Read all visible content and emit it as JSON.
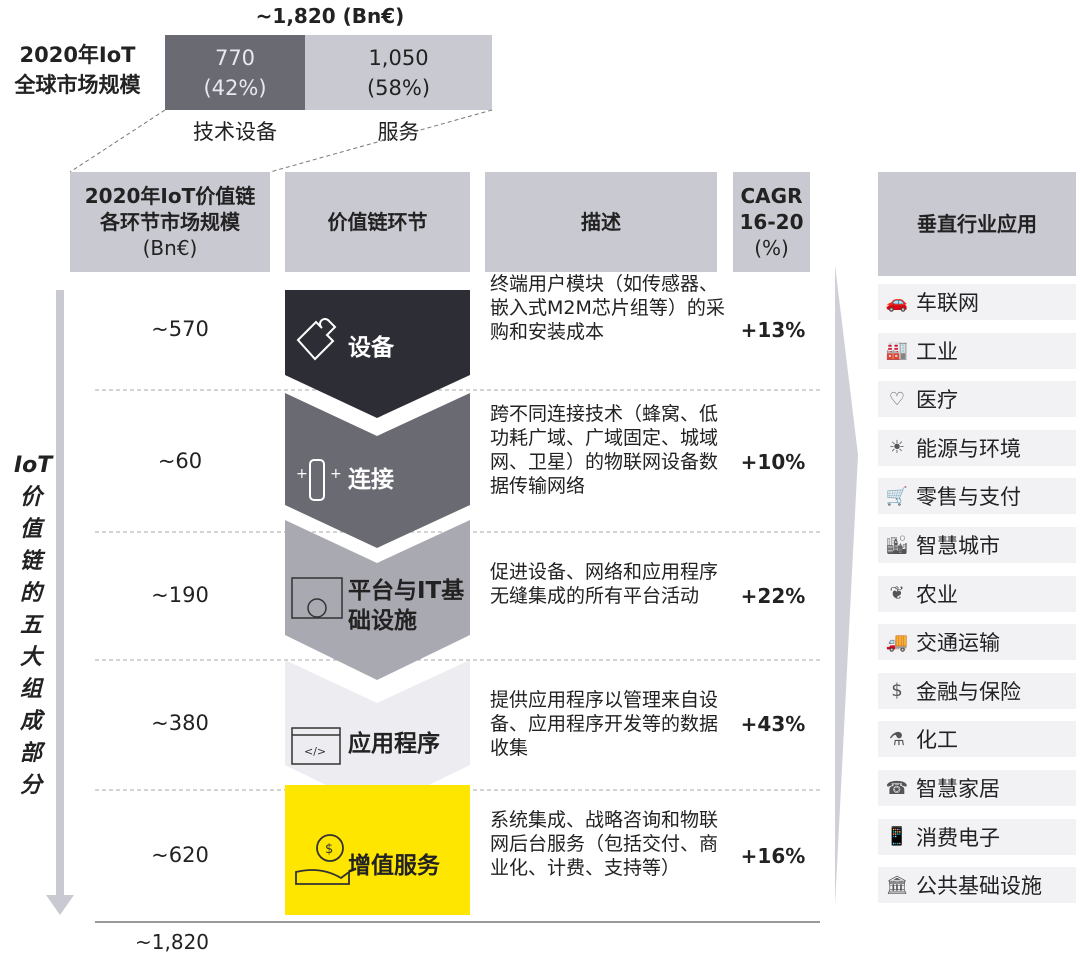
{
  "top": {
    "total": "~1,820 (Bn€)",
    "title_line1": "2020年IoT",
    "title_line2": "全球市场规模",
    "equipment": {
      "value": "770",
      "share": "(42%)",
      "label": "技术设备",
      "color": "#6a6a72"
    },
    "services": {
      "value": "1,050",
      "share": "(58%)",
      "label": "服务",
      "color": "#c9c9d1"
    }
  },
  "headers": {
    "market_size": [
      "2020年IoT价值链",
      "各环节市场规模",
      "(Bn€)"
    ],
    "segment": "价值链环节",
    "description": "描述",
    "cagr": [
      "CAGR",
      "16-20",
      "(%)"
    ],
    "verticals": "垂直行业应用"
  },
  "side_label": "IoT价值链的五大组成部分",
  "rows": [
    {
      "size": "~570",
      "segment": "设备",
      "icon": "puzzle-icon",
      "color": "#2d2d35",
      "description": "终端用户模块（如传感器、嵌入式M2M芯片组等）的采购和安装成本",
      "cagr": "+13%"
    },
    {
      "size": "~60",
      "segment": "连接",
      "icon": "connection-icon",
      "color": "#6a6a72",
      "description": "跨不同连接技术（蜂窝、低功耗广域、广域固定、城域网、卫星）的物联网设备数据传输网络",
      "cagr": "+10%"
    },
    {
      "size": "~190",
      "segment": "平台与IT基础设施",
      "icon": "platform-gear-icon",
      "color": "#a9a9b1",
      "description": "促进设备、网络和应用程序无缝集成的所有平台活动",
      "cagr": "+22%"
    },
    {
      "size": "~380",
      "segment": "应用程序",
      "icon": "code-window-icon",
      "color": "#ececf1",
      "description": "提供应用程序以管理来自设备、应用程序开发等的数据收集",
      "cagr": "+43%"
    },
    {
      "size": "~620",
      "segment": "增值服务",
      "icon": "money-bag-hand-icon",
      "color": "#ffe600",
      "description": "系统集成、战略咨询和物联网后台服务（包括交付、商业化、计费、支持等）",
      "cagr": "+16%"
    }
  ],
  "total_bottom": "~1,820",
  "verticals": [
    {
      "label": "车联网",
      "icon": "connected-car-icon",
      "glyph": "🚗"
    },
    {
      "label": "工业",
      "icon": "factory-icon",
      "glyph": "🏭"
    },
    {
      "label": "医疗",
      "icon": "heart-icon",
      "glyph": "♡"
    },
    {
      "label": "能源与环境",
      "icon": "wind-solar-icon",
      "glyph": "☀"
    },
    {
      "label": "零售与支付",
      "icon": "cart-icon",
      "glyph": "🛒"
    },
    {
      "label": "智慧城市",
      "icon": "city-icon",
      "glyph": "🏙"
    },
    {
      "label": "农业",
      "icon": "leaf-icon",
      "glyph": "❦"
    },
    {
      "label": "交通运输",
      "icon": "truck-icon",
      "glyph": "🚚"
    },
    {
      "label": "金融与保险",
      "icon": "money-bag-icon",
      "glyph": "$"
    },
    {
      "label": "化工",
      "icon": "chemical-icon",
      "glyph": "⚗"
    },
    {
      "label": "智慧家居",
      "icon": "smart-home-icon",
      "glyph": "☎"
    },
    {
      "label": "消费电子",
      "icon": "devices-icon",
      "glyph": "📱"
    },
    {
      "label": "公共基础设施",
      "icon": "public-building-icon",
      "glyph": "🏛"
    }
  ]
}
